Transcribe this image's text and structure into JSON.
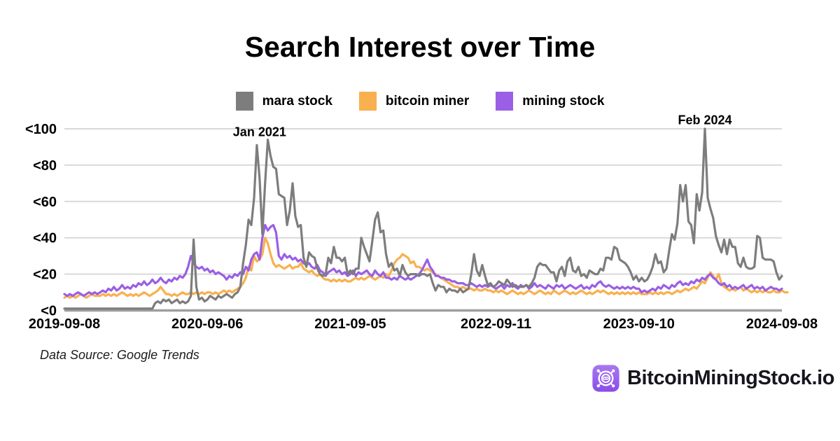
{
  "title": "Search Interest over Time",
  "legend": [
    {
      "label": "mara stock",
      "color": "#7d7d7d"
    },
    {
      "label": "bitcoin miner",
      "color": "#f9b04e"
    },
    {
      "label": "mining stock",
      "color": "#9a5fe4"
    }
  ],
  "footer": {
    "data_source": "Data Source: Google Trends",
    "brand": "BitcoinMiningStock.io",
    "brand_icon": "miner-fan-icon",
    "brand_icon_color_top": "#a878f2",
    "brand_icon_color_bottom": "#8a4de8"
  },
  "colors": {
    "gridline": "#d9d9d9",
    "axis_line": "#9f9f9f",
    "text": "#000000",
    "background": "#ffffff"
  },
  "chart_data": {
    "type": "line",
    "title": "Search Interest over Time",
    "xlabel": "",
    "ylabel": "",
    "x_unit": "week",
    "x_start": "2019-09-08",
    "x_end": "2024-09-08",
    "ylim": [
      0,
      100
    ],
    "grid": "horizontal",
    "legend_position": "top",
    "y_ticks": [
      {
        "label": "<0",
        "value": 0
      },
      {
        "label": "<20",
        "value": 20
      },
      {
        "label": "<40",
        "value": 40
      },
      {
        "label": "<60",
        "value": 60
      },
      {
        "label": "<80",
        "value": 80
      },
      {
        "label": "<100",
        "value": 100
      }
    ],
    "x_ticks": [
      {
        "label": "2019-09-08",
        "week": 0
      },
      {
        "label": "2020-09-06",
        "week": 52
      },
      {
        "label": "2021-09-05",
        "week": 104
      },
      {
        "label": "2022-09-11",
        "week": 157
      },
      {
        "label": "2023-09-10",
        "week": 209
      },
      {
        "label": "2024-09-08",
        "week": 261
      }
    ],
    "annotations": [
      {
        "label": "Jan 2021",
        "week": 71,
        "value": 96
      },
      {
        "label": "Feb 2024",
        "week": 233,
        "value": 102.5
      }
    ],
    "series": [
      {
        "name": "mara stock",
        "color": "#7d7d7d",
        "values": [
          1,
          1,
          1,
          1,
          1,
          1,
          1,
          1,
          1,
          1,
          1,
          1,
          1,
          1,
          1,
          1,
          1,
          1,
          1,
          1,
          1,
          1,
          1,
          1,
          1,
          1,
          1,
          1,
          1,
          1,
          1,
          1,
          1,
          4,
          5,
          4,
          6,
          5,
          6,
          4,
          5,
          6,
          4,
          5,
          4,
          5,
          8,
          39,
          13,
          6,
          7,
          5,
          6,
          8,
          7,
          6,
          8,
          7,
          8,
          9,
          8,
          7,
          9,
          10,
          13,
          26,
          36,
          50,
          47,
          62,
          91,
          73,
          42,
          70,
          94,
          85,
          79,
          78,
          64,
          63,
          62,
          47,
          55,
          70,
          52,
          46,
          47,
          29,
          24,
          32,
          30,
          29,
          23,
          20,
          19,
          20,
          29,
          26,
          35,
          29,
          29,
          27,
          29,
          20,
          22,
          20,
          23,
          23,
          40,
          35,
          31,
          27,
          38,
          50,
          54,
          43,
          44,
          31,
          24,
          26,
          22,
          23,
          19,
          25,
          21,
          19,
          20,
          20,
          20,
          19,
          20,
          20,
          19,
          20,
          15,
          11,
          14,
          13,
          13,
          10,
          12,
          11,
          11,
          10,
          12,
          10,
          11,
          12,
          20,
          31,
          22,
          19,
          25,
          19,
          14,
          15,
          13,
          14,
          16,
          15,
          14,
          17,
          15,
          13,
          14,
          13,
          13,
          13,
          14,
          13,
          15,
          18,
          24,
          26,
          25,
          25,
          23,
          21,
          21,
          16,
          22,
          24,
          19,
          27,
          29,
          22,
          21,
          24,
          19,
          20,
          18,
          22,
          21,
          20,
          20,
          23,
          22,
          29,
          29,
          28,
          35,
          34,
          28,
          27,
          26,
          24,
          21,
          17,
          19,
          16,
          18,
          16,
          17,
          20,
          24,
          31,
          26,
          27,
          21,
          23,
          33,
          42,
          39,
          48,
          69,
          60,
          69,
          49,
          47,
          37,
          64,
          55,
          65,
          100,
          62,
          56,
          51,
          41,
          36,
          32,
          39,
          31,
          39,
          35,
          35,
          26,
          24,
          29,
          24,
          23,
          23,
          24,
          41,
          40,
          29,
          28,
          28,
          28,
          27,
          21,
          17,
          19
        ]
      },
      {
        "name": "bitcoin miner",
        "color": "#f9b04e",
        "values": [
          7,
          8,
          7,
          8,
          7,
          8,
          9,
          8,
          7,
          8,
          9,
          8,
          8,
          8,
          9,
          8,
          9,
          8,
          9,
          8,
          9,
          10,
          9,
          8,
          9,
          8,
          9,
          8,
          9,
          10,
          9,
          8,
          9,
          10,
          11,
          13,
          11,
          9,
          9,
          8,
          9,
          8,
          9,
          10,
          9,
          9,
          10,
          9,
          10,
          9,
          10,
          9,
          10,
          10,
          9,
          10,
          9,
          10,
          11,
          10,
          11,
          10,
          11,
          12,
          13,
          15,
          18,
          24,
          22,
          30,
          27,
          28,
          31,
          40,
          37,
          31,
          26,
          24,
          25,
          24,
          23,
          24,
          25,
          23,
          24,
          24,
          26,
          23,
          22,
          21,
          22,
          20,
          19,
          20,
          18,
          17,
          17,
          16,
          17,
          16,
          17,
          16,
          17,
          16,
          16,
          17,
          18,
          17,
          18,
          17,
          18,
          19,
          18,
          17,
          18,
          19,
          18,
          20,
          19,
          22,
          26,
          28,
          29,
          31,
          30,
          29,
          26,
          27,
          24,
          24,
          23,
          22,
          23,
          22,
          21,
          20,
          19,
          18,
          17,
          16,
          15,
          14,
          13,
          13,
          12,
          13,
          12,
          12,
          12,
          11,
          12,
          11,
          11,
          12,
          11,
          11,
          10,
          11,
          10,
          11,
          10,
          9,
          10,
          11,
          10,
          9,
          10,
          9,
          10,
          11,
          10,
          9,
          10,
          11,
          10,
          9,
          10,
          9,
          11,
          10,
          9,
          10,
          11,
          10,
          9,
          10,
          9,
          10,
          11,
          10,
          9,
          10,
          9,
          10,
          11,
          10,
          11,
          10,
          9,
          10,
          9,
          10,
          9,
          10,
          9,
          10,
          9,
          10,
          9,
          10,
          9,
          9,
          9,
          10,
          9,
          10,
          9,
          10,
          9,
          10,
          10,
          9,
          10,
          11,
          10,
          11,
          12,
          11,
          12,
          13,
          12,
          14,
          16,
          15,
          18,
          21,
          19,
          17,
          20,
          15,
          13,
          12,
          11,
          12,
          11,
          12,
          13,
          11,
          12,
          11,
          10,
          11,
          10,
          11,
          10,
          11,
          10,
          10,
          11,
          10,
          10,
          11,
          10,
          10
        ]
      },
      {
        "name": "mining stock",
        "color": "#9a5fe4",
        "values": [
          9,
          8,
          9,
          8,
          9,
          10,
          9,
          8,
          9,
          10,
          9,
          10,
          9,
          10,
          11,
          10,
          12,
          11,
          13,
          11,
          12,
          14,
          12,
          13,
          12,
          14,
          13,
          15,
          14,
          16,
          14,
          15,
          17,
          15,
          16,
          18,
          16,
          15,
          17,
          16,
          18,
          17,
          19,
          18,
          20,
          24,
          30,
          26,
          24,
          23,
          24,
          22,
          23,
          21,
          22,
          20,
          21,
          20,
          19,
          17,
          19,
          18,
          20,
          19,
          21,
          20,
          24,
          22,
          28,
          31,
          32,
          28,
          40,
          47,
          44,
          46,
          47,
          43,
          30,
          28,
          31,
          29,
          30,
          28,
          29,
          27,
          28,
          26,
          25,
          26,
          24,
          23,
          25,
          22,
          21,
          19,
          21,
          22,
          23,
          21,
          22,
          20,
          21,
          19,
          20,
          22,
          19,
          21,
          20,
          21,
          22,
          20,
          19,
          22,
          20,
          19,
          21,
          18,
          18,
          17,
          18,
          17,
          19,
          18,
          17,
          18,
          17,
          18,
          19,
          20,
          22,
          25,
          28,
          24,
          22,
          19,
          19,
          18,
          18,
          17,
          17,
          16,
          16,
          15,
          15,
          15,
          14,
          14,
          15,
          14,
          13,
          14,
          13,
          14,
          13,
          14,
          13,
          12,
          13,
          14,
          12,
          14,
          13,
          15,
          13,
          12,
          14,
          13,
          14,
          12,
          13,
          15,
          13,
          14,
          13,
          12,
          14,
          13,
          12,
          14,
          13,
          14,
          12,
          13,
          14,
          13,
          12,
          13,
          14,
          12,
          13,
          12,
          14,
          13,
          15,
          16,
          14,
          13,
          14,
          13,
          12,
          13,
          12,
          13,
          12,
          13,
          12,
          13,
          12,
          12,
          10,
          11,
          10,
          11,
          12,
          11,
          13,
          12,
          14,
          13,
          12,
          14,
          13,
          15,
          16,
          14,
          15,
          14,
          16,
          15,
          17,
          16,
          18,
          17,
          19,
          20,
          18,
          17,
          15,
          14,
          15,
          13,
          14,
          12,
          13,
          12,
          13,
          14,
          12,
          13,
          14,
          12,
          13,
          12,
          13,
          11,
          12,
          13,
          12,
          12,
          11,
          12
        ]
      }
    ]
  }
}
